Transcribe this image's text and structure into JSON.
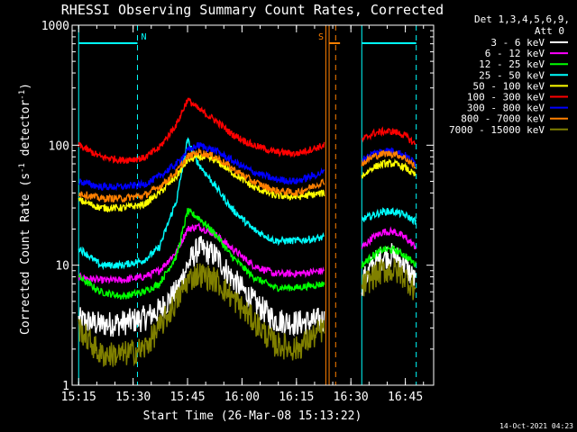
{
  "chart_data": {
    "type": "line",
    "title": "RHESSI Observing Summary Count Rates, Corrected",
    "xlabel": "Start Time (26-Mar-08 15:13:22)",
    "ylabel_main": "Corrected Count Rate (s",
    "ylabel_sup1": "-1",
    "ylabel_mid": " detector",
    "ylabel_sup2": "-1",
    "ylabel_end": ")",
    "xlim": [
      15.22,
      16.88
    ],
    "ylim": [
      1,
      1000
    ],
    "yscale": "log",
    "xticks": [
      {
        "x": 15.25,
        "label": "15:15"
      },
      {
        "x": 15.5,
        "label": "15:30"
      },
      {
        "x": 15.75,
        "label": "15:45"
      },
      {
        "x": 16.0,
        "label": "16:00"
      },
      {
        "x": 16.25,
        "label": "16:15"
      },
      {
        "x": 16.5,
        "label": "16:30"
      },
      {
        "x": 16.75,
        "label": "16:45"
      }
    ],
    "yticks": [
      {
        "y": 1,
        "label": "1"
      },
      {
        "y": 10,
        "label": "10"
      },
      {
        "y": 100,
        "label": "100"
      },
      {
        "y": 1000,
        "label": "1000"
      }
    ],
    "legend_header": [
      "Det 1,3,4,5,6,9,",
      "Att 0"
    ],
    "legend_placement": "right",
    "gaps": [
      [
        16.38,
        16.55
      ]
    ],
    "flag_bars": [
      {
        "label": "N",
        "color": "#00ffff",
        "x_start": 15.25,
        "x_end": 15.52
      },
      {
        "label": "S",
        "color": "#ff8000",
        "x_start": 16.4,
        "x_end": 16.45
      },
      {
        "label": "",
        "color": "#00ffff",
        "x_start": 16.55,
        "x_end": 16.8
      }
    ],
    "vlines": [
      {
        "x": 15.25,
        "color": "#00ffff",
        "style": "solid"
      },
      {
        "x": 15.52,
        "color": "#00ffff",
        "style": "dashed"
      },
      {
        "x": 16.385,
        "color": "#ff8000",
        "style": "solid"
      },
      {
        "x": 16.4,
        "color": "#ff8000",
        "style": "solid"
      },
      {
        "x": 16.43,
        "color": "#ff8000",
        "style": "dashed"
      },
      {
        "x": 16.55,
        "color": "#00ffff",
        "style": "solid"
      },
      {
        "x": 16.8,
        "color": "#00ffff",
        "style": "dashed"
      }
    ],
    "series": [
      {
        "name": "3 - 6 keV",
        "color": "#ffffff",
        "x": [
          15.25,
          15.35,
          15.45,
          15.55,
          15.62,
          15.7,
          15.75,
          15.8,
          15.88,
          15.95,
          16.05,
          16.15,
          16.25,
          16.38,
          16.55,
          16.6,
          16.65,
          16.7,
          16.75,
          16.8
        ],
        "y": [
          3.5,
          3.2,
          3.3,
          3.6,
          4.2,
          6.0,
          10,
          14,
          12,
          8,
          5,
          3.5,
          3.3,
          3.5,
          7,
          10,
          12,
          12,
          10,
          7
        ]
      },
      {
        "name": "6 - 12 keV",
        "color": "#ff00ff",
        "x": [
          15.25,
          15.35,
          15.45,
          15.55,
          15.62,
          15.7,
          15.75,
          15.8,
          15.88,
          15.95,
          16.05,
          16.15,
          16.25,
          16.38,
          16.55,
          16.6,
          16.65,
          16.7,
          16.75,
          16.8
        ],
        "y": [
          8,
          7.5,
          7.5,
          8,
          9,
          13,
          20,
          21,
          18,
          14,
          10,
          8.5,
          8.5,
          9,
          14,
          17,
          19,
          19,
          17,
          14
        ]
      },
      {
        "name": "12 - 25 keV",
        "color": "#00ff00",
        "x": [
          15.25,
          15.35,
          15.45,
          15.55,
          15.62,
          15.7,
          15.75,
          15.8,
          15.88,
          15.95,
          16.05,
          16.15,
          16.25,
          16.38,
          16.55,
          16.6,
          16.65,
          16.7,
          16.75,
          16.8
        ],
        "y": [
          8,
          6,
          5.5,
          6,
          7,
          12,
          28,
          25,
          18,
          12,
          8,
          6.5,
          6.5,
          7,
          10,
          12,
          13.5,
          13.5,
          12,
          10
        ]
      },
      {
        "name": "25 - 50 keV",
        "color": "#00ffff",
        "x": [
          15.25,
          15.35,
          15.45,
          15.55,
          15.62,
          15.7,
          15.75,
          15.8,
          15.88,
          15.95,
          16.05,
          16.15,
          16.25,
          16.38,
          16.55,
          16.6,
          16.65,
          16.7,
          16.75,
          16.8
        ],
        "y": [
          14,
          10,
          10,
          11,
          14,
          35,
          110,
          70,
          45,
          30,
          20,
          16,
          16,
          17,
          24,
          26,
          28,
          28,
          26,
          23
        ]
      },
      {
        "name": "50 - 100 keV",
        "color": "#ffff00",
        "x": [
          15.25,
          15.35,
          15.45,
          15.55,
          15.62,
          15.7,
          15.75,
          15.8,
          15.88,
          15.95,
          16.05,
          16.15,
          16.25,
          16.38,
          16.55,
          16.6,
          16.65,
          16.7,
          16.75,
          16.8
        ],
        "y": [
          35,
          30,
          30,
          32,
          40,
          55,
          75,
          80,
          75,
          60,
          45,
          38,
          37,
          40,
          55,
          65,
          70,
          70,
          65,
          55
        ]
      },
      {
        "name": "100 - 300 keV",
        "color": "#ff0000",
        "x": [
          15.25,
          15.35,
          15.45,
          15.55,
          15.62,
          15.7,
          15.75,
          15.8,
          15.88,
          15.95,
          16.05,
          16.15,
          16.25,
          16.38,
          16.55,
          16.6,
          16.65,
          16.7,
          16.75,
          16.8
        ],
        "y": [
          100,
          80,
          75,
          78,
          95,
          150,
          240,
          200,
          160,
          125,
          100,
          88,
          85,
          100,
          110,
          125,
          130,
          130,
          120,
          100
        ]
      },
      {
        "name": "300 - 800 keV",
        "color": "#0000ff",
        "x": [
          15.25,
          15.35,
          15.45,
          15.55,
          15.62,
          15.7,
          15.75,
          15.8,
          15.88,
          15.95,
          16.05,
          16.15,
          16.25,
          16.38,
          16.55,
          16.6,
          16.65,
          16.7,
          16.75,
          16.8
        ],
        "y": [
          50,
          45,
          45,
          47,
          55,
          70,
          90,
          100,
          90,
          75,
          60,
          52,
          50,
          60,
          75,
          85,
          90,
          90,
          82,
          70
        ]
      },
      {
        "name": "800 - 7000 keV",
        "color": "#ff8000",
        "x": [
          15.25,
          15.35,
          15.45,
          15.55,
          15.62,
          15.7,
          15.75,
          15.8,
          15.88,
          15.95,
          16.05,
          16.15,
          16.25,
          16.38,
          16.55,
          16.6,
          16.65,
          16.7,
          16.75,
          16.8
        ],
        "y": [
          40,
          36,
          36,
          38,
          45,
          60,
          80,
          88,
          80,
          65,
          50,
          42,
          40,
          50,
          70,
          80,
          85,
          85,
          78,
          65
        ]
      },
      {
        "name": "7000 - 15000 keV",
        "color": "#808000",
        "x": [
          15.25,
          15.35,
          15.45,
          15.55,
          15.62,
          15.7,
          15.75,
          15.8,
          15.88,
          15.95,
          16.05,
          16.15,
          16.25,
          16.38,
          16.55,
          16.6,
          16.65,
          16.7,
          16.75,
          16.8
        ],
        "y": [
          3,
          1.8,
          1.8,
          2.0,
          3.0,
          5.0,
          7.5,
          8.5,
          7.5,
          5.5,
          3.5,
          2.2,
          2.0,
          3.0,
          6.5,
          8,
          9,
          9,
          8,
          6
        ]
      }
    ]
  },
  "footer": {
    "timestamp": "14-Oct-2021 04:23"
  }
}
